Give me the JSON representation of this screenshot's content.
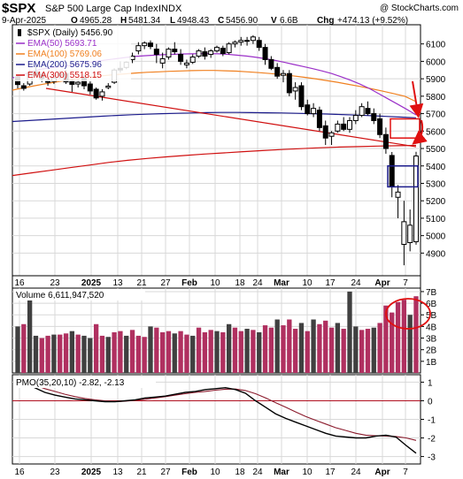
{
  "header": {
    "symbol": "$SPX",
    "name": "S&P 500 Large Cap Index",
    "exchange": "INDX",
    "watermark": "@ StockCharts.com",
    "date": "9-Apr-2025",
    "open_label": "O",
    "open": "4965.28",
    "high_label": "H",
    "high": "5481.34",
    "low_label": "L",
    "low": "4948.43",
    "close_label": "C",
    "close": "5456.90",
    "volume_label": "V",
    "volume": "6.6B",
    "change_label": "Chg",
    "change": "+474.13 (+9.52%)"
  },
  "colors": {
    "ema50": "#9b30c8",
    "ema100": "#f08020",
    "ema200": "#1c1c8c",
    "ema300": "#d01010",
    "up_volume": "#b03060",
    "down_volume": "#404040",
    "pmo_line": "#000000",
    "pmo_signal": "#8b1a2c",
    "annotation": "#e01010"
  },
  "chart_data": [
    {
      "type": "candlestick",
      "legend_placement": "top-left",
      "legend": [
        {
          "label": "$SPX (Daily) 5456.90",
          "color": "#000000"
        },
        {
          "label": "EMA(50) 5693.71",
          "color": "#9b30c8"
        },
        {
          "label": "EMA(100) 5769.06",
          "color": "#f08020"
        },
        {
          "label": "EMA(200) 5675.96",
          "color": "#1c1c8c"
        },
        {
          "label": "EMA(300) 5518.15",
          "color": "#d01010"
        }
      ],
      "ylim": [
        4770,
        6210
      ],
      "y_ticks": [
        4900,
        5000,
        5100,
        5200,
        5300,
        5400,
        5500,
        5600,
        5700,
        5800,
        5900,
        6000,
        6100
      ],
      "y_tick_labels": [
        "4900",
        "5000",
        "5100",
        "5200",
        "5300",
        "5400",
        "5500",
        "5600",
        "5700",
        "5800",
        "5900",
        "6000",
        "6100"
      ],
      "ohlc": [
        [
          5910,
          5920,
          5845,
          5867
        ],
        [
          5860,
          5875,
          5832,
          5845
        ],
        [
          5870,
          5950,
          5860,
          5935
        ],
        [
          5940,
          5975,
          5915,
          5920
        ],
        [
          5925,
          5935,
          5880,
          5900
        ],
        [
          5890,
          5905,
          5860,
          5880
        ],
        [
          5885,
          5925,
          5870,
          5905
        ],
        [
          5920,
          5945,
          5900,
          5930
        ],
        [
          5930,
          5950,
          5870,
          5882
        ],
        [
          5885,
          5895,
          5825,
          5868
        ],
        [
          5870,
          5895,
          5850,
          5880
        ],
        [
          5905,
          5925,
          5840,
          5860
        ],
        [
          5870,
          5885,
          5810,
          5830
        ],
        [
          5840,
          5850,
          5780,
          5790
        ],
        [
          5800,
          5840,
          5775,
          5825
        ],
        [
          5850,
          5875,
          5840,
          5858
        ],
        [
          5880,
          5960,
          5870,
          5950
        ],
        [
          5960,
          6000,
          5935,
          5950
        ],
        [
          5965,
          6000,
          5955,
          5995
        ],
        [
          6010,
          6050,
          5990,
          6030
        ],
        [
          6060,
          6110,
          6040,
          6090
        ],
        [
          6090,
          6115,
          6070,
          6105
        ],
        [
          6105,
          6120,
          6070,
          6085
        ],
        [
          6070,
          6100,
          5990,
          6040
        ],
        [
          5990,
          6050,
          5960,
          6015
        ],
        [
          6025,
          6080,
          6010,
          6070
        ],
        [
          6070,
          6110,
          6040,
          6055
        ],
        [
          6040,
          6070,
          5980,
          6000
        ],
        [
          5980,
          6010,
          5960,
          5990
        ],
        [
          5995,
          6040,
          5985,
          6025
        ],
        [
          6030,
          6070,
          6020,
          6060
        ],
        [
          6055,
          6080,
          6010,
          6030
        ],
        [
          6040,
          6070,
          6020,
          6060
        ],
        [
          6060,
          6090,
          6050,
          6080
        ],
        [
          6075,
          6090,
          6030,
          6045
        ],
        [
          6050,
          6110,
          6040,
          6100
        ],
        [
          6100,
          6120,
          6080,
          6110
        ],
        [
          6110,
          6140,
          6090,
          6120
        ],
        [
          6120,
          6140,
          6090,
          6115
        ],
        [
          6120,
          6150,
          6100,
          6140
        ],
        [
          6120,
          6140,
          6060,
          6080
        ],
        [
          6080,
          6100,
          5980,
          6010
        ],
        [
          6010,
          6030,
          5950,
          5960
        ],
        [
          5965,
          5990,
          5900,
          5915
        ],
        [
          5920,
          5950,
          5880,
          5930
        ],
        [
          5930,
          5950,
          5800,
          5820
        ],
        [
          5830,
          5880,
          5780,
          5850
        ],
        [
          5860,
          5880,
          5720,
          5740
        ],
        [
          5750,
          5780,
          5690,
          5700
        ],
        [
          5700,
          5760,
          5680,
          5730
        ],
        [
          5720,
          5740,
          5600,
          5620
        ],
        [
          5630,
          5660,
          5520,
          5560
        ],
        [
          5570,
          5600,
          5520,
          5590
        ],
        [
          5600,
          5660,
          5590,
          5640
        ],
        [
          5640,
          5680,
          5600,
          5610
        ],
        [
          5610,
          5680,
          5590,
          5660
        ],
        [
          5660,
          5720,
          5640,
          5690
        ],
        [
          5690,
          5760,
          5680,
          5740
        ],
        [
          5730,
          5770,
          5690,
          5700
        ],
        [
          5700,
          5730,
          5640,
          5660
        ],
        [
          5670,
          5700,
          5560,
          5580
        ],
        [
          5580,
          5620,
          5470,
          5500
        ],
        [
          5460,
          5480,
          5220,
          5280
        ],
        [
          5220,
          5290,
          5100,
          5250
        ],
        [
          4950,
          5200,
          4830,
          5080
        ],
        [
          4960,
          5150,
          4910,
          5060
        ],
        [
          4965,
          5481,
          4948,
          5457
        ]
      ],
      "ema50": [
        5905,
        5920,
        5940,
        5955,
        5962,
        5968,
        5975,
        5983,
        5992,
        6000,
        6008,
        6015,
        6022,
        6028,
        6032,
        6035,
        6038,
        6040,
        6042,
        6043,
        6044,
        6044,
        6043,
        6040,
        6035,
        6030,
        6023,
        6015,
        6005,
        5994,
        5982,
        5970,
        5958,
        5945,
        5930,
        5912,
        5892,
        5870,
        5845,
        5815,
        5785,
        5755,
        5725,
        5693
      ],
      "ema100": [
        5835,
        5848,
        5860,
        5872,
        5883,
        5893,
        5902,
        5910,
        5917,
        5923,
        5928,
        5933,
        5937,
        5940,
        5943,
        5945,
        5947,
        5948,
        5948,
        5946,
        5944,
        5940,
        5935,
        5930,
        5924,
        5917,
        5909,
        5900,
        5890,
        5880,
        5868,
        5856,
        5843,
        5829,
        5815,
        5800,
        5769
      ],
      "ema200": [
        5655,
        5660,
        5665,
        5670,
        5675,
        5680,
        5685,
        5690,
        5694,
        5697,
        5700,
        5702,
        5704,
        5706,
        5707,
        5707,
        5706,
        5705,
        5704,
        5702,
        5700,
        5698,
        5695,
        5692,
        5688,
        5684,
        5680,
        5676
      ],
      "ema300": [
        5345,
        5360,
        5375,
        5390,
        5405,
        5420,
        5432,
        5443,
        5452,
        5460,
        5468,
        5475,
        5482,
        5488,
        5494,
        5499,
        5504,
        5508,
        5511,
        5514,
        5516,
        5518
      ],
      "trendline": [
        [
          5845,
          5510
        ]
      ],
      "annotation_rectangles": [
        [
          5560,
          5670
        ],
        [
          5280,
          5400
        ]
      ]
    },
    {
      "type": "bar",
      "title": "Volume 6,611,947,520",
      "ylim": [
        0,
        7.3
      ],
      "y_ticks": [
        1,
        2,
        3,
        4,
        5,
        6,
        7
      ],
      "y_tick_labels": [
        "1B",
        "2B",
        "3B",
        "4B",
        "5B",
        "6B",
        "7B"
      ],
      "values": [
        4.0,
        4.2,
        7.0,
        3.2,
        3.0,
        3.2,
        3.3,
        3.3,
        3.4,
        3.6,
        3.3,
        3.2,
        3.0,
        4.2,
        3.2,
        3.1,
        3.5,
        3.6,
        3.2,
        3.7,
        3.2,
        3.1,
        4.0,
        3.9,
        3.5,
        3.6,
        3.4,
        3.6,
        3.3,
        3.2,
        3.9,
        3.5,
        3.7,
        3.6,
        3.5,
        4.2,
        3.9,
        3.6,
        3.8,
        3.7,
        3.5,
        4.1,
        3.9,
        4.6,
        4.1,
        4.6,
        3.8,
        4.3,
        3.6,
        4.6,
        4.2,
        4.5,
        3.9,
        4.3,
        3.8,
        7.0,
        4.0,
        3.7,
        3.8,
        3.9,
        4.3,
        5.8,
        5.2,
        6.1,
        6.3,
        5.0,
        6.6
      ],
      "up": [
        0,
        1,
        0,
        0,
        1,
        1,
        0,
        1,
        1,
        0,
        1,
        0,
        0,
        1,
        1,
        0,
        1,
        1,
        0,
        1,
        1,
        1,
        0,
        1,
        1,
        1,
        0,
        1,
        1,
        0,
        1,
        1,
        1,
        0,
        1,
        0,
        1,
        1,
        0,
        1,
        0,
        1,
        1,
        0,
        1,
        1,
        1,
        0,
        1,
        0,
        1,
        1,
        1,
        0,
        1,
        0,
        0,
        1,
        1,
        0,
        1,
        1,
        1,
        1,
        1,
        0,
        1
      ]
    },
    {
      "type": "line",
      "title": "PMO(35,20,10) -2.82, -2.13",
      "ylim": [
        -3.4,
        1.4
      ],
      "y_ticks": [
        -3,
        -2,
        -1,
        0,
        1
      ],
      "y_tick_labels": [
        "-3",
        "-2",
        "-1",
        "0",
        "1"
      ],
      "series": [
        {
          "values": [
            1.0,
            0.7,
            0.45,
            0.3,
            0.2,
            0.1,
            0.05,
            0.0,
            -0.05,
            -0.05,
            0.0,
            0.05,
            0.15,
            0.2,
            0.25,
            0.35,
            0.45,
            0.5,
            0.6,
            0.65,
            0.7,
            0.6,
            0.4,
            0.0,
            -0.35,
            -0.7,
            -0.95,
            -1.15,
            -1.35,
            -1.55,
            -1.75,
            -1.9,
            -1.95,
            -2.0,
            -2.0,
            -1.9,
            -1.85,
            -1.95,
            -2.4,
            -2.82
          ]
        },
        {
          "values": [
            1.05,
            0.85,
            0.65,
            0.5,
            0.35,
            0.22,
            0.12,
            0.05,
            0.0,
            -0.05,
            -0.02,
            0.02,
            0.08,
            0.15,
            0.22,
            0.3,
            0.38,
            0.45,
            0.5,
            0.57,
            0.62,
            0.63,
            0.55,
            0.38,
            0.15,
            -0.1,
            -0.35,
            -0.6,
            -0.85,
            -1.05,
            -1.25,
            -1.45,
            -1.6,
            -1.75,
            -1.85,
            -1.88,
            -1.9,
            -1.92,
            -2.0,
            -2.13
          ]
        }
      ]
    }
  ],
  "x_axis": {
    "labels": [
      "16",
      "23",
      "2025",
      "13",
      "21",
      "27",
      "Feb",
      "10",
      "18",
      "24",
      "Mar",
      "10",
      "17",
      "24",
      "Apr",
      "7"
    ],
    "bold": [
      false,
      false,
      true,
      false,
      false,
      false,
      true,
      false,
      false,
      false,
      true,
      false,
      false,
      false,
      true,
      false
    ]
  }
}
